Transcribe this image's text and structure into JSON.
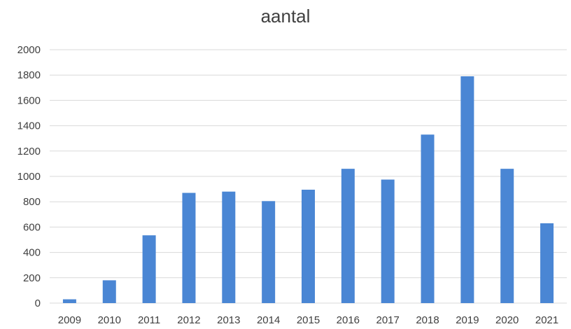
{
  "chart_data": {
    "type": "bar",
    "title": "aantal",
    "xlabel": "",
    "ylabel": "",
    "categories": [
      "2009",
      "2010",
      "2011",
      "2012",
      "2013",
      "2014",
      "2015",
      "2016",
      "2017",
      "2018",
      "2019",
      "2020",
      "2021"
    ],
    "values": [
      30,
      180,
      535,
      870,
      880,
      805,
      895,
      1060,
      975,
      1330,
      1790,
      1060,
      630
    ],
    "ylim": [
      0,
      2000
    ],
    "yticks": [
      "0",
      "200",
      "400",
      "600",
      "800",
      "1000",
      "1200",
      "1400",
      "1600",
      "1800",
      "2000"
    ],
    "grid": true,
    "legend": "none",
    "colors": {
      "bar": "#4a86d4",
      "grid": "#d9d9d9",
      "text": "#404040"
    }
  }
}
